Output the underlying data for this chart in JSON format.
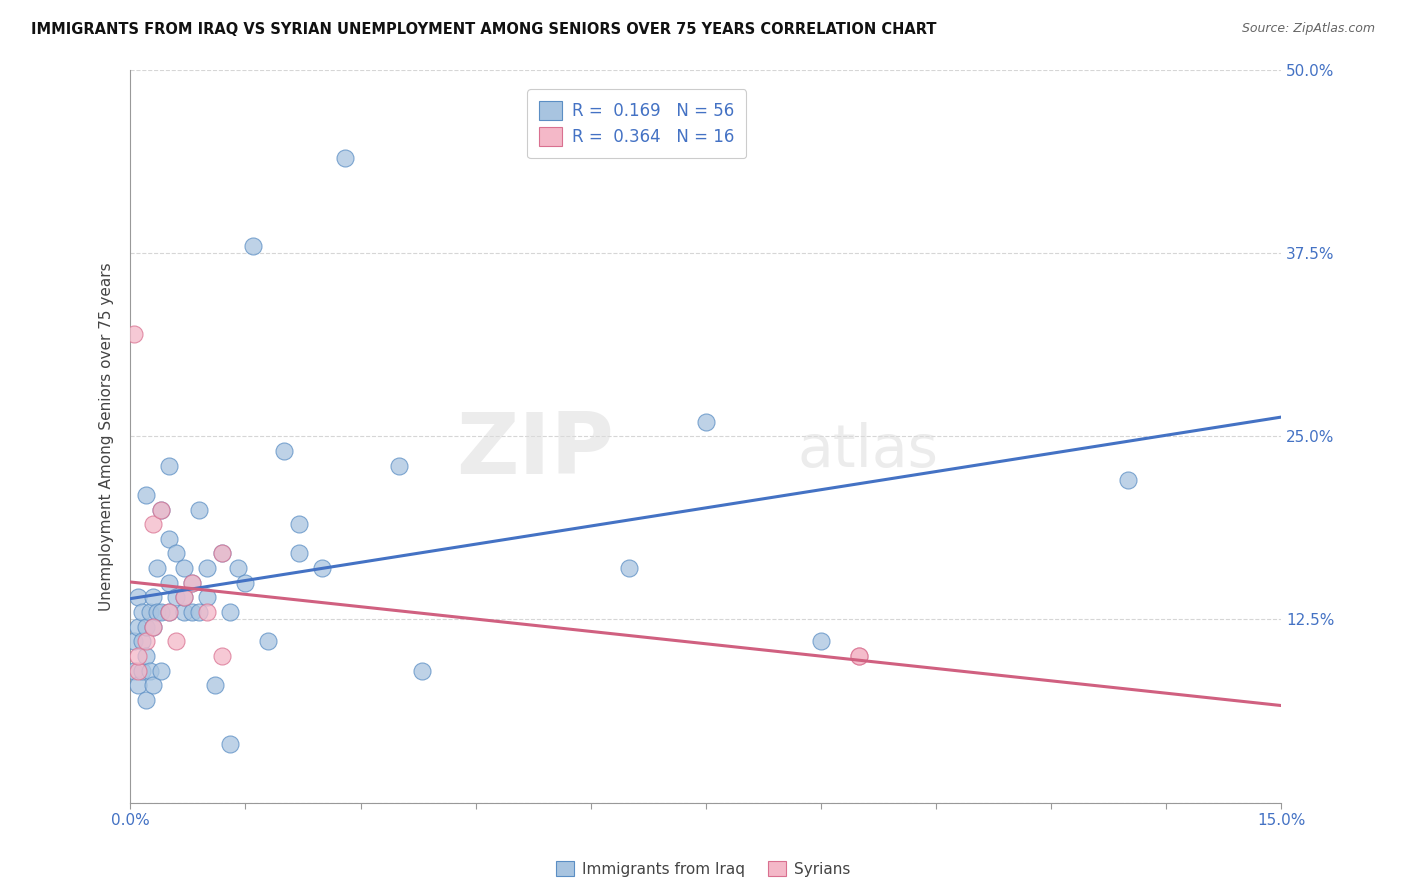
{
  "title": "IMMIGRANTS FROM IRAQ VS SYRIAN UNEMPLOYMENT AMONG SENIORS OVER 75 YEARS CORRELATION CHART",
  "source": "Source: ZipAtlas.com",
  "ylabel": "Unemployment Among Seniors over 75 years",
  "xlim": [
    0,
    0.15
  ],
  "ylim": [
    0,
    0.5
  ],
  "xtick_positions": [
    0.0,
    0.015,
    0.03,
    0.045,
    0.06,
    0.075,
    0.09,
    0.105,
    0.12,
    0.135,
    0.15
  ],
  "ytick_positions": [
    0.0,
    0.125,
    0.25,
    0.375,
    0.5
  ],
  "iraq_R": 0.169,
  "iraq_N": 56,
  "syrian_R": 0.364,
  "syrian_N": 16,
  "iraq_color": "#a8c4e0",
  "iraq_edge_color": "#5b8ec4",
  "iraq_line_color": "#4472c4",
  "syrian_color": "#f4b8c8",
  "syrian_edge_color": "#d97090",
  "syrian_line_color": "#d06080",
  "tick_label_color": "#4472c4",
  "iraq_x": [
    0.0005,
    0.0005,
    0.001,
    0.001,
    0.001,
    0.0015,
    0.0015,
    0.0015,
    0.002,
    0.002,
    0.002,
    0.002,
    0.0025,
    0.0025,
    0.003,
    0.003,
    0.003,
    0.0035,
    0.0035,
    0.004,
    0.004,
    0.004,
    0.005,
    0.005,
    0.005,
    0.005,
    0.006,
    0.006,
    0.007,
    0.007,
    0.007,
    0.008,
    0.008,
    0.009,
    0.009,
    0.01,
    0.01,
    0.011,
    0.012,
    0.013,
    0.013,
    0.014,
    0.015,
    0.016,
    0.018,
    0.02,
    0.022,
    0.022,
    0.025,
    0.028,
    0.035,
    0.038,
    0.065,
    0.075,
    0.09,
    0.13
  ],
  "iraq_y": [
    0.09,
    0.11,
    0.08,
    0.12,
    0.14,
    0.09,
    0.11,
    0.13,
    0.07,
    0.1,
    0.12,
    0.21,
    0.09,
    0.13,
    0.08,
    0.12,
    0.14,
    0.13,
    0.16,
    0.09,
    0.13,
    0.2,
    0.13,
    0.15,
    0.18,
    0.23,
    0.14,
    0.17,
    0.13,
    0.14,
    0.16,
    0.13,
    0.15,
    0.13,
    0.2,
    0.14,
    0.16,
    0.08,
    0.17,
    0.04,
    0.13,
    0.16,
    0.15,
    0.38,
    0.11,
    0.24,
    0.17,
    0.19,
    0.16,
    0.44,
    0.23,
    0.09,
    0.16,
    0.26,
    0.11,
    0.22
  ],
  "syrian_x": [
    0.0005,
    0.001,
    0.001,
    0.002,
    0.003,
    0.003,
    0.004,
    0.005,
    0.006,
    0.007,
    0.008,
    0.01,
    0.012,
    0.012,
    0.095,
    0.095
  ],
  "syrian_y": [
    0.32,
    0.09,
    0.1,
    0.11,
    0.12,
    0.19,
    0.2,
    0.13,
    0.11,
    0.14,
    0.15,
    0.13,
    0.1,
    0.17,
    0.1,
    0.1
  ],
  "watermark_zip": "ZIP",
  "watermark_atlas": "atlas",
  "legend_label_iraq": "Immigrants from Iraq",
  "legend_label_syrian": "Syrians"
}
